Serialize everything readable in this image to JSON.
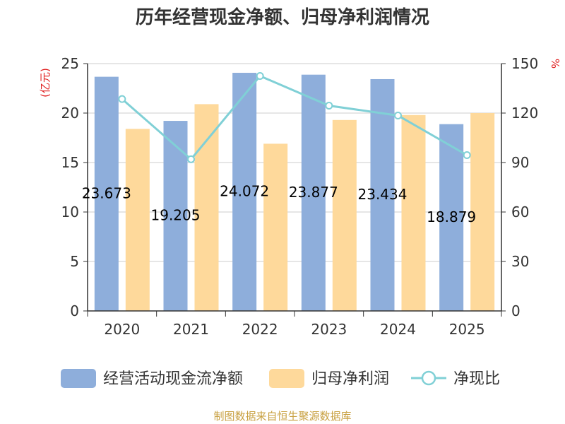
{
  "chart_data": {
    "type": "bar",
    "title": "历年经营现金净额、归母净利润情况",
    "categories": [
      "2020",
      "2021",
      "2022",
      "2023",
      "2024",
      "2025"
    ],
    "series": [
      {
        "name": "经营活动现金流净额",
        "kind": "bar",
        "axis": "left",
        "color": "#8eaedb",
        "values": [
          23.67,
          19.21,
          24.07,
          23.88,
          23.43,
          18.88
        ],
        "labels": [
          "23.673",
          "19.205",
          "24.072",
          "23.877",
          "23.434",
          "18.879"
        ]
      },
      {
        "name": "归母净利润",
        "kind": "bar",
        "axis": "left",
        "color": "#fed99b",
        "values": [
          18.4,
          20.9,
          16.9,
          19.3,
          19.8,
          20.0
        ]
      },
      {
        "name": "净现比",
        "kind": "line",
        "axis": "right",
        "color": "#80d0d6",
        "values": [
          128.5,
          92.0,
          142.5,
          124.5,
          118.5,
          94.5
        ]
      }
    ],
    "left_axis": {
      "unit": "(亿元)",
      "min": 0,
      "max": 25,
      "ticks": [
        0,
        5,
        10,
        15,
        20,
        25
      ]
    },
    "right_axis": {
      "unit": "%",
      "min": 0,
      "max": 150,
      "ticks": [
        0,
        30,
        60,
        90,
        120,
        150
      ]
    },
    "colors": {
      "unit": "#e02020",
      "source": "#c8a040",
      "axis": "#333333",
      "grid": "#cccccc"
    },
    "legend": "bottom",
    "source": "制图数据来自恒生聚源数据库"
  }
}
